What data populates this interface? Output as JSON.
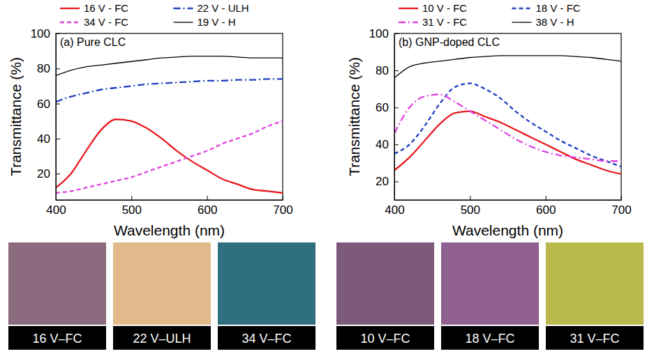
{
  "chart_data": [
    {
      "type": "line",
      "title": "(a) Pure CLC",
      "xlabel": "Wavelength (nm)",
      "ylabel": "Transmittance (%)",
      "x": [
        400,
        420,
        440,
        460,
        480,
        500,
        520,
        540,
        560,
        580,
        600,
        620,
        640,
        660,
        680,
        700
      ],
      "xlim": [
        400,
        700
      ],
      "xticks": [
        400,
        500,
        600,
        700
      ],
      "ylim": [
        5,
        100
      ],
      "yticks": [
        20,
        40,
        60,
        80,
        100
      ],
      "grid": false,
      "legend": "top",
      "series": [
        {
          "name": "16 V - FC",
          "color": "#e8191e",
          "line_style": "solid",
          "values": [
            12,
            20,
            33,
            45,
            51,
            50,
            46,
            40,
            33,
            27,
            22,
            17,
            14,
            11,
            10,
            9
          ]
        },
        {
          "name": "22 V - ULH",
          "color": "#1f3fbf",
          "line_style": "dash-dot",
          "values": [
            61,
            64,
            66,
            68,
            69,
            70,
            71,
            71.5,
            72,
            72.5,
            73,
            73,
            73.5,
            73.5,
            74,
            74
          ]
        },
        {
          "name": "34 V - FC",
          "color": "#e040e0",
          "line_style": "dashed",
          "values": [
            9,
            10,
            12,
            14,
            16,
            18,
            21,
            24,
            27,
            30,
            33,
            37,
            40,
            43,
            47,
            50
          ]
        },
        {
          "name": "19 V - H",
          "color": "#000000",
          "line_style": "solid",
          "values": [
            76,
            79,
            81,
            82,
            83,
            84,
            85,
            86,
            86.5,
            87,
            87,
            87,
            86.5,
            86,
            86,
            86
          ]
        }
      ],
      "annotations": [
        "16 V–FC",
        "22 V–ULH",
        "34 V–FC"
      ]
    },
    {
      "type": "line",
      "title": "(b) GNP-doped CLC",
      "xlabel": "Wavelength (nm)",
      "ylabel": "Transmittance (%)",
      "x": [
        400,
        420,
        440,
        460,
        480,
        500,
        520,
        540,
        560,
        580,
        600,
        620,
        640,
        660,
        680,
        700
      ],
      "xlim": [
        400,
        700
      ],
      "xticks": [
        400,
        500,
        600,
        700
      ],
      "ylim": [
        10,
        100
      ],
      "yticks": [
        20,
        40,
        60,
        80,
        100
      ],
      "grid": false,
      "legend": "top",
      "series": [
        {
          "name": "10 V - FC",
          "color": "#e8191e",
          "line_style": "solid",
          "values": [
            26,
            33,
            42,
            51,
            57,
            58,
            55,
            52,
            48,
            44,
            40,
            36,
            32,
            29,
            26,
            24
          ]
        },
        {
          "name": "18 V - FC",
          "color": "#1f3fbf",
          "line_style": "dashed",
          "values": [
            35,
            40,
            50,
            62,
            71,
            73,
            70,
            65,
            58,
            52,
            47,
            42,
            38,
            34,
            31,
            28
          ]
        },
        {
          "name": "31 V - FC",
          "color": "#e040e0",
          "line_style": "dash-dot",
          "values": [
            46,
            60,
            66,
            67,
            63,
            58,
            53,
            48,
            43,
            39,
            36,
            34,
            33,
            32,
            31,
            31
          ]
        },
        {
          "name": "38 V - H",
          "color": "#000000",
          "line_style": "solid",
          "values": [
            76,
            82,
            84,
            85,
            86,
            87,
            87.5,
            88,
            88,
            88,
            88,
            88,
            87.5,
            87,
            86,
            85
          ]
        }
      ],
      "annotations": [
        "10 V–FC",
        "18 V–FC",
        "31 V–FC"
      ]
    }
  ]
}
